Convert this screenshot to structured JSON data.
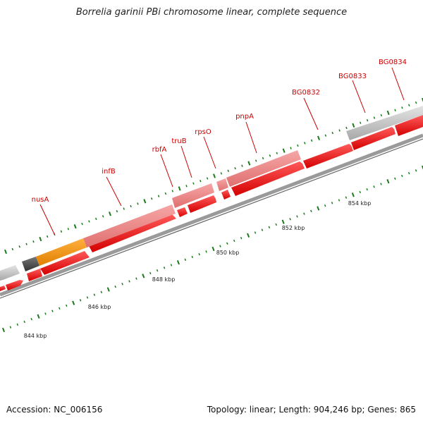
{
  "title": "Borrelia garinii PBi chromosome linear, complete sequence",
  "footer": {
    "accession": "Accession: NC_006156",
    "summary": "Topology: linear; Length: 904,246 bp; Genes: 865"
  },
  "scale": {
    "kbp_labels": [
      "844 kbp",
      "846 kbp",
      "848 kbp",
      "850 kbp",
      "852 kbp",
      "854 kbp"
    ]
  },
  "genes": [
    {
      "name": "nusA"
    },
    {
      "name": "infB"
    },
    {
      "name": "rbfA"
    },
    {
      "name": "truB"
    },
    {
      "name": "rpsO"
    },
    {
      "name": "pnpA"
    },
    {
      "name": "BG0832"
    },
    {
      "name": "BG0833"
    },
    {
      "name": "BG0834"
    }
  ],
  "colors": {
    "cds_forward": "#ff0000",
    "cds_highlight": "#f08080",
    "orange_feature": "#ff9900",
    "gray_feature": "#c8c8c8",
    "dark_feature": "#555555",
    "label_text": "#cc0000",
    "tick": "#1a7a1a",
    "backbone": "#7f7f7f"
  }
}
